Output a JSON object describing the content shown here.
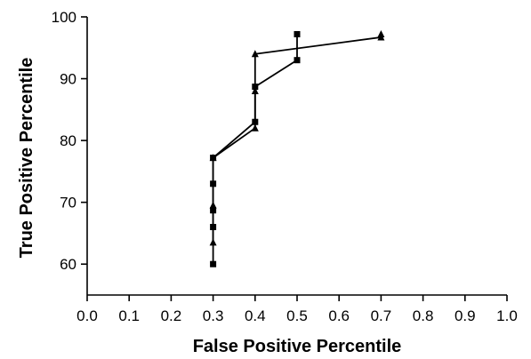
{
  "chart_data": {
    "type": "line",
    "title": "",
    "xlabel": "False Positive Percentile",
    "ylabel": "True Positive Percentile",
    "xlim": [
      0.0,
      1.0
    ],
    "ylim": [
      55,
      100
    ],
    "x_ticks": [
      "0.0",
      "0.1",
      "0.2",
      "0.3",
      "0.4",
      "0.5",
      "0.6",
      "0.7",
      "0.8",
      "0.9",
      "1.0"
    ],
    "x_tick_values": [
      0.0,
      0.1,
      0.2,
      0.3,
      0.4,
      0.5,
      0.6,
      0.7,
      0.8,
      0.9,
      1.0
    ],
    "y_ticks": [
      "60",
      "70",
      "80",
      "90",
      "100"
    ],
    "y_tick_values": [
      60,
      70,
      80,
      90,
      100
    ],
    "grid": false,
    "legend": "none",
    "series": [
      {
        "marker": "square",
        "color": "#000000",
        "points": [
          {
            "x": 0.3,
            "y": 60
          },
          {
            "x": 0.3,
            "y": 66
          },
          {
            "x": 0.3,
            "y": 68.7
          },
          {
            "x": 0.3,
            "y": 73
          },
          {
            "x": 0.3,
            "y": 77.2
          },
          {
            "x": 0.4,
            "y": 83
          },
          {
            "x": 0.4,
            "y": 88.7
          },
          {
            "x": 0.5,
            "y": 93
          },
          {
            "x": 0.5,
            "y": 97.2
          }
        ]
      },
      {
        "marker": "triangle",
        "color": "#000000",
        "points": [
          {
            "x": 0.3,
            "y": 63.5
          },
          {
            "x": 0.3,
            "y": 69.5
          },
          {
            "x": 0.3,
            "y": 77.2
          },
          {
            "x": 0.4,
            "y": 82
          },
          {
            "x": 0.4,
            "y": 88
          },
          {
            "x": 0.4,
            "y": 94
          },
          {
            "x": 0.7,
            "y": 96.7
          },
          {
            "x": 0.7,
            "y": 97.2
          }
        ]
      }
    ]
  }
}
